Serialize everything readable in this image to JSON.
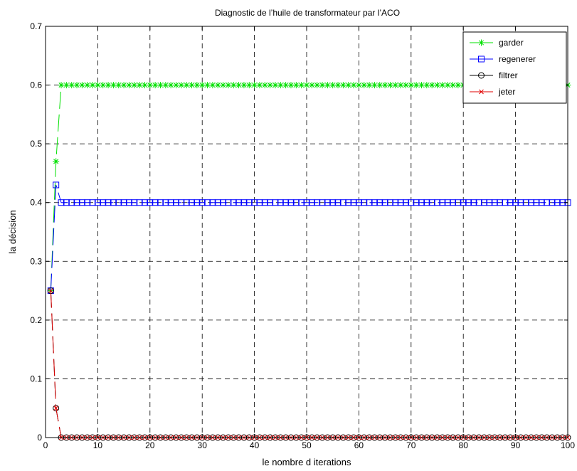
{
  "chart_data": {
    "type": "line",
    "title": "Diagnostic de l’huile de transformateur par l’ACO",
    "xlabel": "le nombre d iterations",
    "ylabel": "la décision",
    "xlim": [
      0,
      100
    ],
    "ylim": [
      0,
      0.7
    ],
    "xticks": [
      0,
      10,
      20,
      30,
      40,
      50,
      60,
      70,
      80,
      90,
      100
    ],
    "yticks": [
      0,
      0.1,
      0.2,
      0.3,
      0.4,
      0.5,
      0.6,
      0.7
    ],
    "grid": true,
    "legend_position": "top-right",
    "series": [
      {
        "name": "garder",
        "color": "#00e000",
        "marker": "asterisk",
        "values": [
          0.25,
          0.47,
          0.6
        ],
        "steady_value": 0.6,
        "x_last": 100
      },
      {
        "name": "regenerer",
        "color": "#0000ff",
        "marker": "square",
        "values": [
          0.25,
          0.43,
          0.4
        ],
        "steady_value": 0.4,
        "x_last": 100
      },
      {
        "name": "filtrer",
        "color": "#000000",
        "marker": "circle",
        "values": [
          0.25,
          0.05,
          0
        ],
        "steady_value": 0,
        "x_last": 100
      },
      {
        "name": "jeter",
        "color": "#e00000",
        "marker": "x",
        "values": [
          0.25,
          0.05,
          0
        ],
        "steady_value": 0,
        "x_last": 100
      }
    ]
  }
}
